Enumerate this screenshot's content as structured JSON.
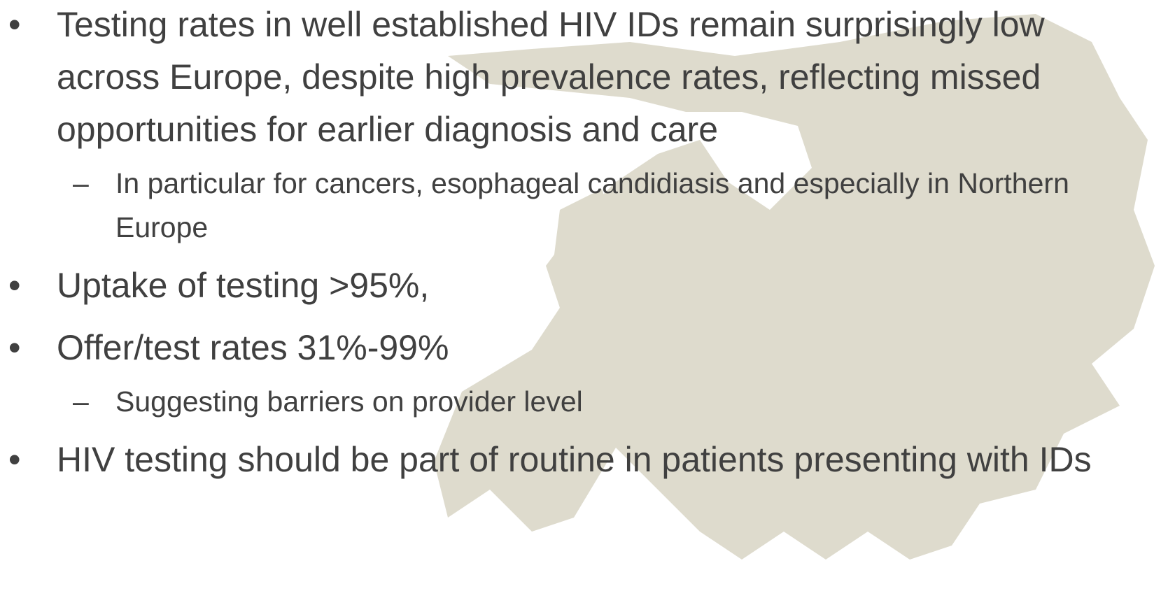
{
  "bullets": [
    {
      "text": "Testing rates in well established HIV IDs remain surprisingly low across Europe, despite high prevalence rates, reflecting missed opportunities for earlier diagnosis and care",
      "sub": [
        "In particular for cancers, esophageal candidiasis and especially in Northern Europe"
      ]
    },
    {
      "text": "Uptake of testing >95%,",
      "sub": []
    },
    {
      "text": "Offer/test rates 31%-99%",
      "sub": [
        "Suggesting barriers on provider level"
      ]
    },
    {
      "text": "HIV testing should be part of routine in patients presenting with IDs",
      "sub": []
    }
  ]
}
